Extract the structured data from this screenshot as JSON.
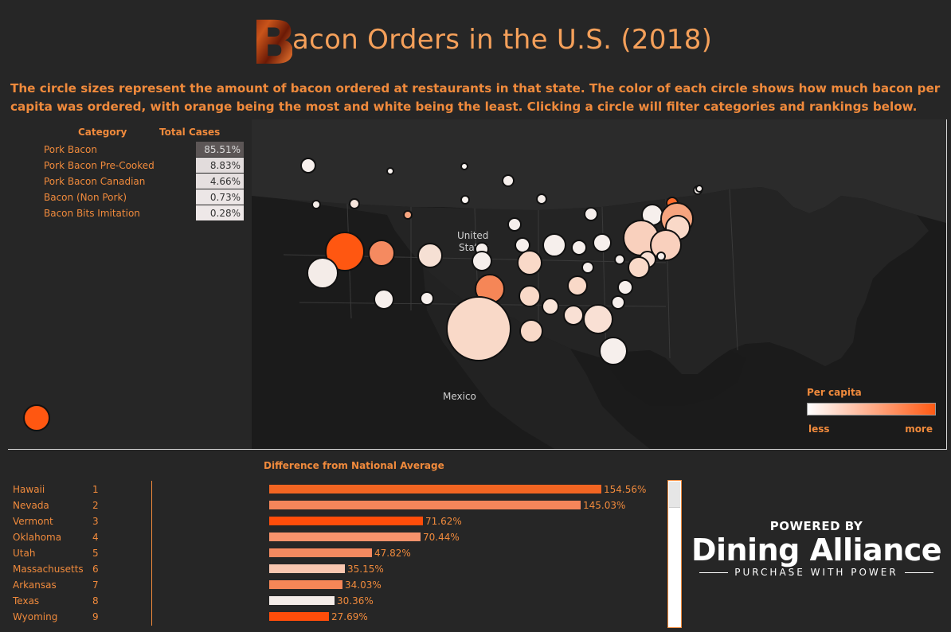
{
  "title": {
    "logo_letter": "B",
    "text": "acon Orders in the U.S. (2018)"
  },
  "subtitle": "The circle sizes represent the amount of bacon ordered at restaurants in that state. The color of each circle shows how much bacon per capita was ordered, with orange being the most and white being the least. Clicking a circle will filter categories and rankings below.",
  "categories": {
    "header_category": "Category",
    "header_total": "Total Cases",
    "rows": [
      {
        "label": "Pork Bacon",
        "value": "85.51%",
        "shade": "#5c5656"
      },
      {
        "label": "Pork Bacon Pre-Cooked",
        "value": "8.83%",
        "shade": "#e2dcdc"
      },
      {
        "label": "Pork Bacon Canadian",
        "value": "4.66%",
        "shade": "#e6e0e0"
      },
      {
        "label": "Bacon (Non Pork)",
        "value": "0.73%",
        "shade": "#ece6e6"
      },
      {
        "label": "Bacon Bits Imitation",
        "value": "0.28%",
        "shade": "#eee8e8"
      }
    ]
  },
  "map": {
    "labels": {
      "us": "United\nStates",
      "us_line1": "United",
      "us_line2": "States",
      "mexico": "Mexico"
    }
  },
  "size_legend": {
    "color": "#ff5711"
  },
  "per_capita_legend": {
    "title": "Per capita",
    "less": "less",
    "more": "more",
    "color_low": "#ffffff",
    "color_high": "#ff5a14"
  },
  "ranking": {
    "title": "Difference from National Average",
    "rows": [
      {
        "state": "Hawaii",
        "rank": "1",
        "pct": "154.56%",
        "value": 154.56,
        "color": "#f26522"
      },
      {
        "state": "Nevada",
        "rank": "2",
        "pct": "145.03%",
        "value": 145.03,
        "color": "#f5855a"
      },
      {
        "state": "Vermont",
        "rank": "3",
        "pct": "71.62%",
        "value": 71.62,
        "color": "#ff4d0a"
      },
      {
        "state": "Oklahoma",
        "rank": "4",
        "pct": "70.44%",
        "value": 70.44,
        "color": "#f7936c"
      },
      {
        "state": "Utah",
        "rank": "5",
        "pct": "47.82%",
        "value": 47.82,
        "color": "#f58a60"
      },
      {
        "state": "Massachusetts",
        "rank": "6",
        "pct": "35.15%",
        "value": 35.15,
        "color": "#f9c7b0"
      },
      {
        "state": "Arkansas",
        "rank": "7",
        "pct": "34.03%",
        "value": 34.03,
        "color": "#f58657"
      },
      {
        "state": "Texas",
        "rank": "8",
        "pct": "30.36%",
        "value": 30.36,
        "color": "#f4ece8"
      },
      {
        "state": "Wyoming",
        "rank": "9",
        "pct": "27.69%",
        "value": 27.69,
        "color": "#ff4d0a"
      }
    ]
  },
  "brand": {
    "powered": "POWERED BY",
    "name": "Dining Alliance",
    "tagline": "PURCHASE WITH POWER"
  }
}
